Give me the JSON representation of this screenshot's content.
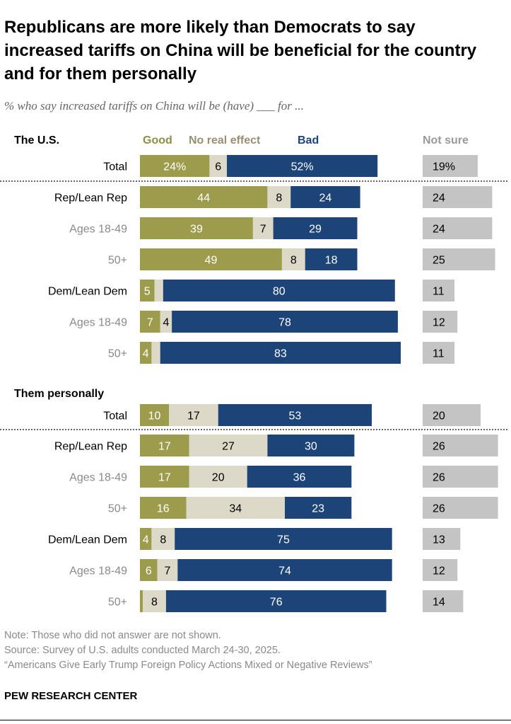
{
  "title": "Republicans are more likely than Democrats to say increased tariffs on China will be beneficial for the country and for them personally",
  "subtitle": "% who say increased tariffs on China will be (have) ___ for ...",
  "colors": {
    "good": "#9c9c4c",
    "no_effect": "#dcd9c9",
    "bad": "#1d4479",
    "not_sure": "#c4c4c4",
    "good_label": "#8f8f46",
    "no_effect_label": "#9a8f72",
    "bad_label": "#1d4479",
    "not_sure_label": "#9a9a9a"
  },
  "chart_data": {
    "type": "bar",
    "stacked": true,
    "orientation": "horizontal",
    "legend": {
      "good": "Good",
      "no_effect": "No real effect",
      "bad": "Bad",
      "not_sure": "Not sure"
    },
    "sections": [
      {
        "heading": "The U.S.",
        "rows": [
          {
            "label": "Total",
            "muted": false,
            "good": 24,
            "no_effect": 6,
            "bad": 52,
            "not_sure": 19,
            "good_text": "24%",
            "no_effect_text": "6",
            "bad_text": "52%",
            "not_sure_text": "19%"
          },
          {
            "label": "Rep/Lean Rep",
            "muted": false,
            "good": 44,
            "no_effect": 8,
            "bad": 24,
            "not_sure": 24,
            "good_text": "44",
            "no_effect_text": "8",
            "bad_text": "24",
            "not_sure_text": "24"
          },
          {
            "label": "Ages 18-49",
            "muted": true,
            "good": 39,
            "no_effect": 7,
            "bad": 29,
            "not_sure": 24,
            "good_text": "39",
            "no_effect_text": "7",
            "bad_text": "29",
            "not_sure_text": "24"
          },
          {
            "label": "50+",
            "muted": true,
            "good": 49,
            "no_effect": 8,
            "bad": 18,
            "not_sure": 25,
            "good_text": "49",
            "no_effect_text": "8",
            "bad_text": "18",
            "not_sure_text": "25"
          },
          {
            "label": "Dem/Lean Dem",
            "muted": false,
            "good": 5,
            "no_effect": 3,
            "bad": 80,
            "not_sure": 11,
            "good_text": "5",
            "no_effect_text": "",
            "bad_text": "80",
            "not_sure_text": "11"
          },
          {
            "label": "Ages 18-49",
            "muted": true,
            "good": 7,
            "no_effect": 4,
            "bad": 78,
            "not_sure": 12,
            "good_text": "7",
            "no_effect_text": "4",
            "bad_text": "78",
            "not_sure_text": "12"
          },
          {
            "label": "50+",
            "muted": true,
            "good": 4,
            "no_effect": 3,
            "bad": 83,
            "not_sure": 11,
            "good_text": "4",
            "no_effect_text": "",
            "bad_text": "83",
            "not_sure_text": "11"
          }
        ]
      },
      {
        "heading": "Them personally",
        "rows": [
          {
            "label": "Total",
            "muted": false,
            "good": 10,
            "no_effect": 17,
            "bad": 53,
            "not_sure": 20,
            "good_text": "10",
            "no_effect_text": "17",
            "bad_text": "53",
            "not_sure_text": "20"
          },
          {
            "label": "Rep/Lean Rep",
            "muted": false,
            "good": 17,
            "no_effect": 27,
            "bad": 30,
            "not_sure": 26,
            "good_text": "17",
            "no_effect_text": "27",
            "bad_text": "30",
            "not_sure_text": "26"
          },
          {
            "label": "Ages 18-49",
            "muted": true,
            "good": 17,
            "no_effect": 20,
            "bad": 36,
            "not_sure": 26,
            "good_text": "17",
            "no_effect_text": "20",
            "bad_text": "36",
            "not_sure_text": "26"
          },
          {
            "label": "50+",
            "muted": true,
            "good": 16,
            "no_effect": 34,
            "bad": 23,
            "not_sure": 26,
            "good_text": "16",
            "no_effect_text": "34",
            "bad_text": "23",
            "not_sure_text": "26"
          },
          {
            "label": "Dem/Lean Dem",
            "muted": false,
            "good": 4,
            "no_effect": 8,
            "bad": 75,
            "not_sure": 13,
            "good_text": "4",
            "no_effect_text": "8",
            "bad_text": "75",
            "not_sure_text": "13"
          },
          {
            "label": "Ages 18-49",
            "muted": true,
            "good": 6,
            "no_effect": 7,
            "bad": 74,
            "not_sure": 12,
            "good_text": "6",
            "no_effect_text": "7",
            "bad_text": "74",
            "not_sure_text": "12"
          },
          {
            "label": "50+",
            "muted": true,
            "good": 1,
            "no_effect": 8,
            "bad": 76,
            "not_sure": 14,
            "good_text": "",
            "no_effect_text": "8",
            "bad_text": "76",
            "not_sure_text": "14"
          }
        ]
      }
    ]
  },
  "notes": {
    "note": "Note: Those who did not answer are not shown.",
    "source": "Source: Survey of U.S. adults conducted March 24-30, 2025.",
    "report": "“Americans Give Early Trump Foreign Policy Actions Mixed or Negative Reviews”"
  },
  "brand": "PEW RESEARCH CENTER"
}
